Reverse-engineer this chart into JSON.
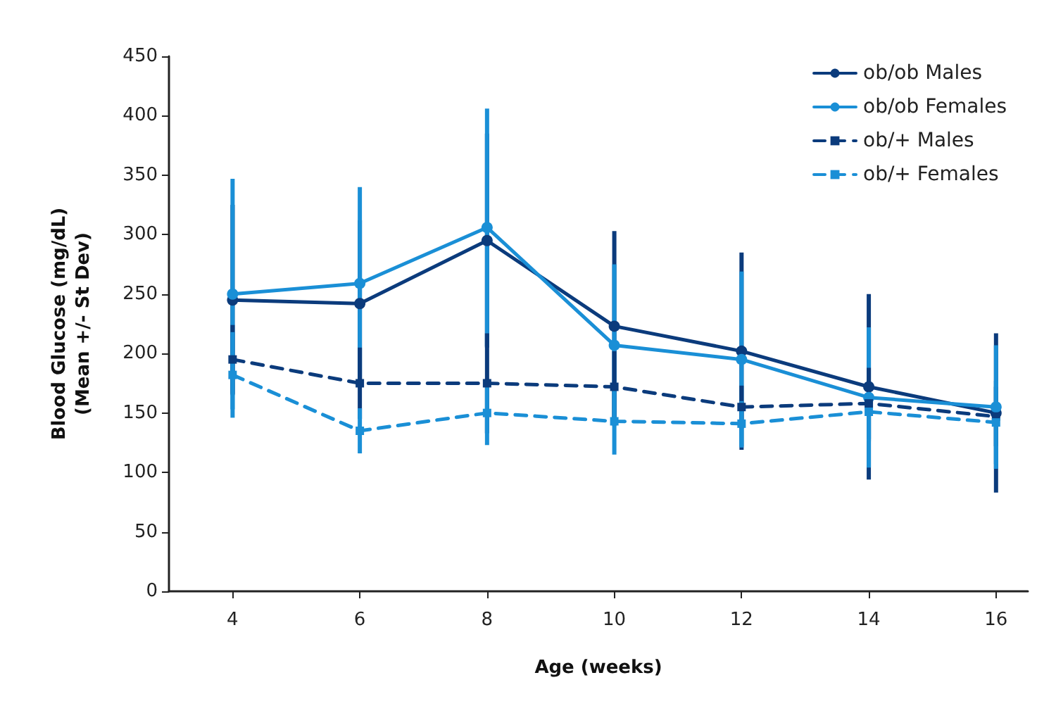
{
  "chart_data": {
    "type": "line",
    "xlabel": "Age (weeks)",
    "ylabel": "Blood Glucose (mg/dL)\n(Mean +/- St Dev)",
    "x": [
      4,
      6,
      8,
      10,
      12,
      14,
      16
    ],
    "series": [
      {
        "name": "ob/ob Males",
        "color": "#0b3b7c",
        "marker": "circle",
        "line_style": "solid",
        "values": [
          245,
          242,
          295,
          223,
          202,
          172,
          150
        ],
        "errors": [
          80,
          70,
          90,
          80,
          83,
          78,
          67
        ]
      },
      {
        "name": "ob/ob Females",
        "color": "#1a8fd6",
        "marker": "circle",
        "line_style": "solid",
        "values": [
          250,
          259,
          306,
          207,
          195,
          163,
          155
        ],
        "errors": [
          97,
          81,
          100,
          68,
          74,
          59,
          52
        ]
      },
      {
        "name": "ob/+ Males",
        "color": "#0b3b7c",
        "marker": "square",
        "line_style": "dashed",
        "values": [
          195,
          175,
          175,
          172,
          155,
          158,
          147
        ],
        "errors": [
          29,
          30,
          42,
          30,
          18,
          30,
          25
        ]
      },
      {
        "name": "ob/+ Females",
        "color": "#1a8fd6",
        "marker": "square",
        "line_style": "dashed",
        "values": [
          182,
          135,
          150,
          143,
          141,
          151,
          142
        ],
        "errors": [
          36,
          19,
          27,
          28,
          19,
          25,
          35
        ]
      }
    ],
    "xlim": [
      3,
      16.5
    ],
    "xticks": [
      4,
      6,
      8,
      10,
      12,
      14,
      16
    ],
    "ylim": [
      0,
      450
    ],
    "yticks": [
      0,
      50,
      100,
      150,
      200,
      250,
      300,
      350,
      400,
      450
    ],
    "grid": false,
    "legend": "top right"
  }
}
